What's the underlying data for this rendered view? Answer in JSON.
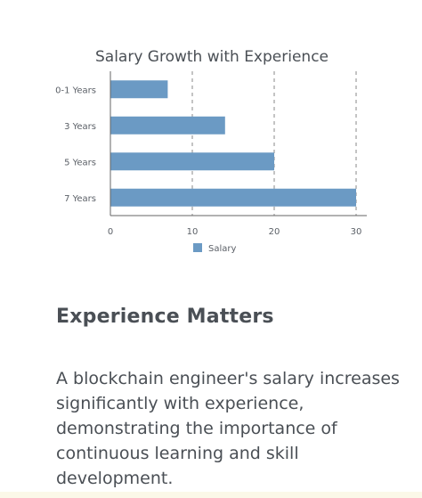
{
  "chart_data": {
    "type": "bar",
    "orientation": "horizontal",
    "title": "Salary Growth with Experience",
    "categories": [
      "0-1 Years",
      "3 Years",
      "5 Years",
      "7 Years"
    ],
    "series": [
      {
        "name": "Salary",
        "values": [
          7,
          14,
          20,
          30
        ],
        "color": "#6b9ac4"
      }
    ],
    "xlim": [
      0,
      30
    ],
    "xticks": [
      0,
      10,
      20,
      30
    ],
    "grid": "vertical-dashed",
    "legend": "bottom-center",
    "xlabel": "",
    "ylabel": ""
  },
  "section": {
    "title": "Experience Matters",
    "body": "A blockchain engineer's salary increases significantly with experience, demonstrating the importance of continuous learning and skill development."
  },
  "colors": {
    "bar": "#6b9ac4",
    "text": "#4a4f55",
    "axis": "#666666",
    "grid": "#8a8a8a"
  }
}
